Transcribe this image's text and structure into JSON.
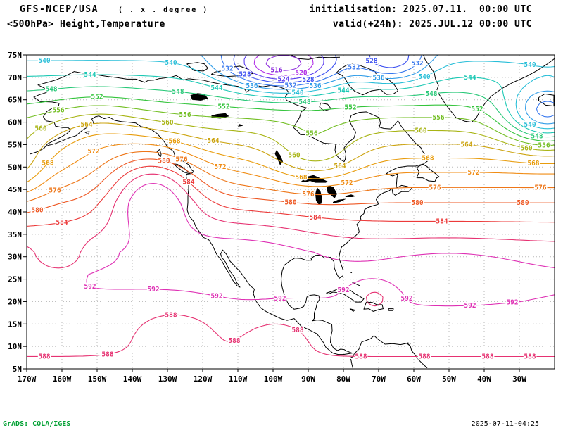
{
  "header": {
    "model": "GFS-NCEP/USA",
    "resolution_note": "( . x . degree )",
    "init_label": "initialisation: 2025.07.11.  00:00 UTC",
    "level_title": "<500hPa> Height,Temperature",
    "valid_label": "valid(+24h): 2025.JUL.12 00:00 UTC"
  },
  "footer": {
    "grads_credit": "GrADS: COLA/IGES",
    "credit_color": "#00a032",
    "timestamp": "2025-07-11-04:25"
  },
  "map": {
    "grid_color": "#b8b8b8",
    "coast_color": "#000000",
    "lat_ticks": [
      "75N",
      "70N",
      "65N",
      "60N",
      "55N",
      "50N",
      "45N",
      "40N",
      "35N",
      "30N",
      "25N",
      "20N",
      "15N",
      "10N",
      "5N"
    ],
    "lon_ticks": [
      "170W",
      "160W",
      "150W",
      "140W",
      "130W",
      "120W",
      "110W",
      "100W",
      "90W",
      "80W",
      "70W",
      "60W",
      "50W",
      "40W",
      "30W"
    ],
    "contour_interval": 4,
    "contours": [
      {
        "level": 516,
        "color": "#8c28dc"
      },
      {
        "level": 520,
        "color": "#b02ee6"
      },
      {
        "level": 524,
        "color": "#5a3cf0"
      },
      {
        "level": 528,
        "color": "#3c50f0"
      },
      {
        "level": 532,
        "color": "#3878ee"
      },
      {
        "level": 536,
        "color": "#309ce8"
      },
      {
        "level": 540,
        "color": "#28bed8"
      },
      {
        "level": 544,
        "color": "#1cc8b4"
      },
      {
        "level": 548,
        "color": "#28c878"
      },
      {
        "level": 552,
        "color": "#34c43c"
      },
      {
        "level": 556,
        "color": "#72be22"
      },
      {
        "level": 560,
        "color": "#a8b414"
      },
      {
        "level": 564,
        "color": "#cca410"
      },
      {
        "level": 568,
        "color": "#e89c0c"
      },
      {
        "level": 572,
        "color": "#f08c14"
      },
      {
        "level": 576,
        "color": "#ee7618"
      },
      {
        "level": 580,
        "color": "#ee5824"
      },
      {
        "level": 584,
        "color": "#ec3a3a"
      },
      {
        "level": 588,
        "color": "#e63272"
      },
      {
        "level": 592,
        "color": "#de30b4"
      }
    ]
  },
  "chart_data": {
    "type": "contour-map",
    "field": "<500hPa> Height,Temperature",
    "levels": [
      516,
      520,
      524,
      528,
      532,
      536,
      540,
      544,
      548,
      552,
      556,
      560,
      564,
      568,
      572,
      576,
      580,
      584,
      588,
      592
    ],
    "contour_interval": 4,
    "lat_tick_labels": [
      "75N",
      "70N",
      "65N",
      "60N",
      "55N",
      "50N",
      "45N",
      "40N",
      "35N",
      "30N",
      "25N",
      "20N",
      "15N",
      "10N",
      "5N"
    ],
    "lon_tick_labels": [
      "170W",
      "160W",
      "150W",
      "140W",
      "130W",
      "120W",
      "110W",
      "100W",
      "90W",
      "80W",
      "70W",
      "60W",
      "50W",
      "40W",
      "30W"
    ]
  }
}
